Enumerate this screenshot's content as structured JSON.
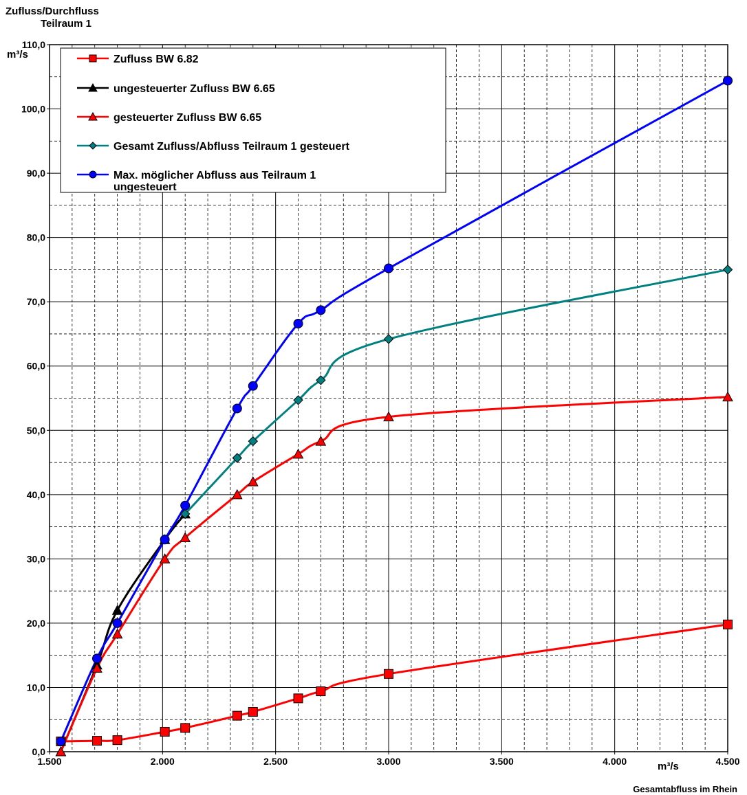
{
  "chart_data": {
    "type": "line",
    "title_line1": "Zufluss/Durchfluss",
    "title_line2": "Teilraum 1",
    "ylabel_unit": "m³/s",
    "xlabel_unit": "m³/s",
    "xlabel": "Gesamtabfluss im Rhein",
    "xlim": [
      1500,
      4500
    ],
    "ylim": [
      0,
      110
    ],
    "x_ticks": [
      1500,
      2000,
      2500,
      3000,
      3500,
      4000,
      4500
    ],
    "x_tick_labels": [
      "1.500",
      "2.000",
      "2.500",
      "3.000",
      "3.500",
      "4.000",
      "4.500"
    ],
    "y_ticks": [
      0,
      10,
      20,
      30,
      40,
      50,
      60,
      70,
      80,
      90,
      100,
      110
    ],
    "y_tick_labels": [
      "0,0",
      "10,0",
      "20,0",
      "30,0",
      "40,0",
      "50,0",
      "60,0",
      "70,0",
      "80,0",
      "90,0",
      "100,0",
      "110,0"
    ],
    "grid": true,
    "legend_position": "top-left",
    "series": [
      {
        "name": "Zufluss BW 6.82",
        "color": "#ff0000",
        "marker": "square",
        "x": [
          1550,
          1710,
          1800,
          2010,
          2100,
          2330,
          2400,
          2600,
          2700,
          3000,
          4500
        ],
        "y": [
          1.6,
          1.7,
          1.8,
          3.1,
          3.7,
          5.6,
          6.2,
          8.3,
          9.4,
          12.1,
          19.8
        ]
      },
      {
        "name": "ungesteuerter Zufluss BW 6.65",
        "color": "#000000",
        "marker": "triangle",
        "x": [
          1550,
          1710,
          1800,
          2010,
          2100
        ],
        "y": [
          0,
          13.5,
          22.0,
          33.0,
          37.0
        ]
      },
      {
        "name": "gesteuerter Zufluss BW 6.65",
        "color": "#ff0000",
        "marker": "triangle",
        "x": [
          1550,
          1710,
          1800,
          2010,
          2100,
          2330,
          2400,
          2600,
          2700,
          3000,
          4500
        ],
        "y": [
          0,
          13.0,
          18.3,
          30.0,
          33.3,
          40.0,
          42.0,
          46.3,
          48.3,
          52.1,
          55.2
        ]
      },
      {
        "name": "Gesamt Zufluss/Abfluss Teilraum 1 gesteuert",
        "color": "#008080",
        "marker": "diamond",
        "x": [
          2100,
          2330,
          2400,
          2600,
          2700,
          3000,
          4500
        ],
        "y": [
          37.0,
          45.7,
          48.3,
          54.7,
          57.8,
          64.2,
          75.0
        ]
      },
      {
        "name": "Max. möglicher Abfluss aus Teilraum 1 ungesteuert",
        "name_line1": "Max. möglicher Abfluss aus Teilraum 1",
        "name_line2": "ungesteuert",
        "color": "#0000ff",
        "marker": "circle",
        "x": [
          1550,
          1710,
          1800,
          2010,
          2100,
          2330,
          2400,
          2600,
          2700,
          3000,
          4500
        ],
        "y": [
          1.6,
          14.5,
          20.0,
          33.0,
          38.3,
          53.4,
          56.9,
          66.6,
          68.7,
          75.2,
          104.4
        ]
      }
    ]
  }
}
